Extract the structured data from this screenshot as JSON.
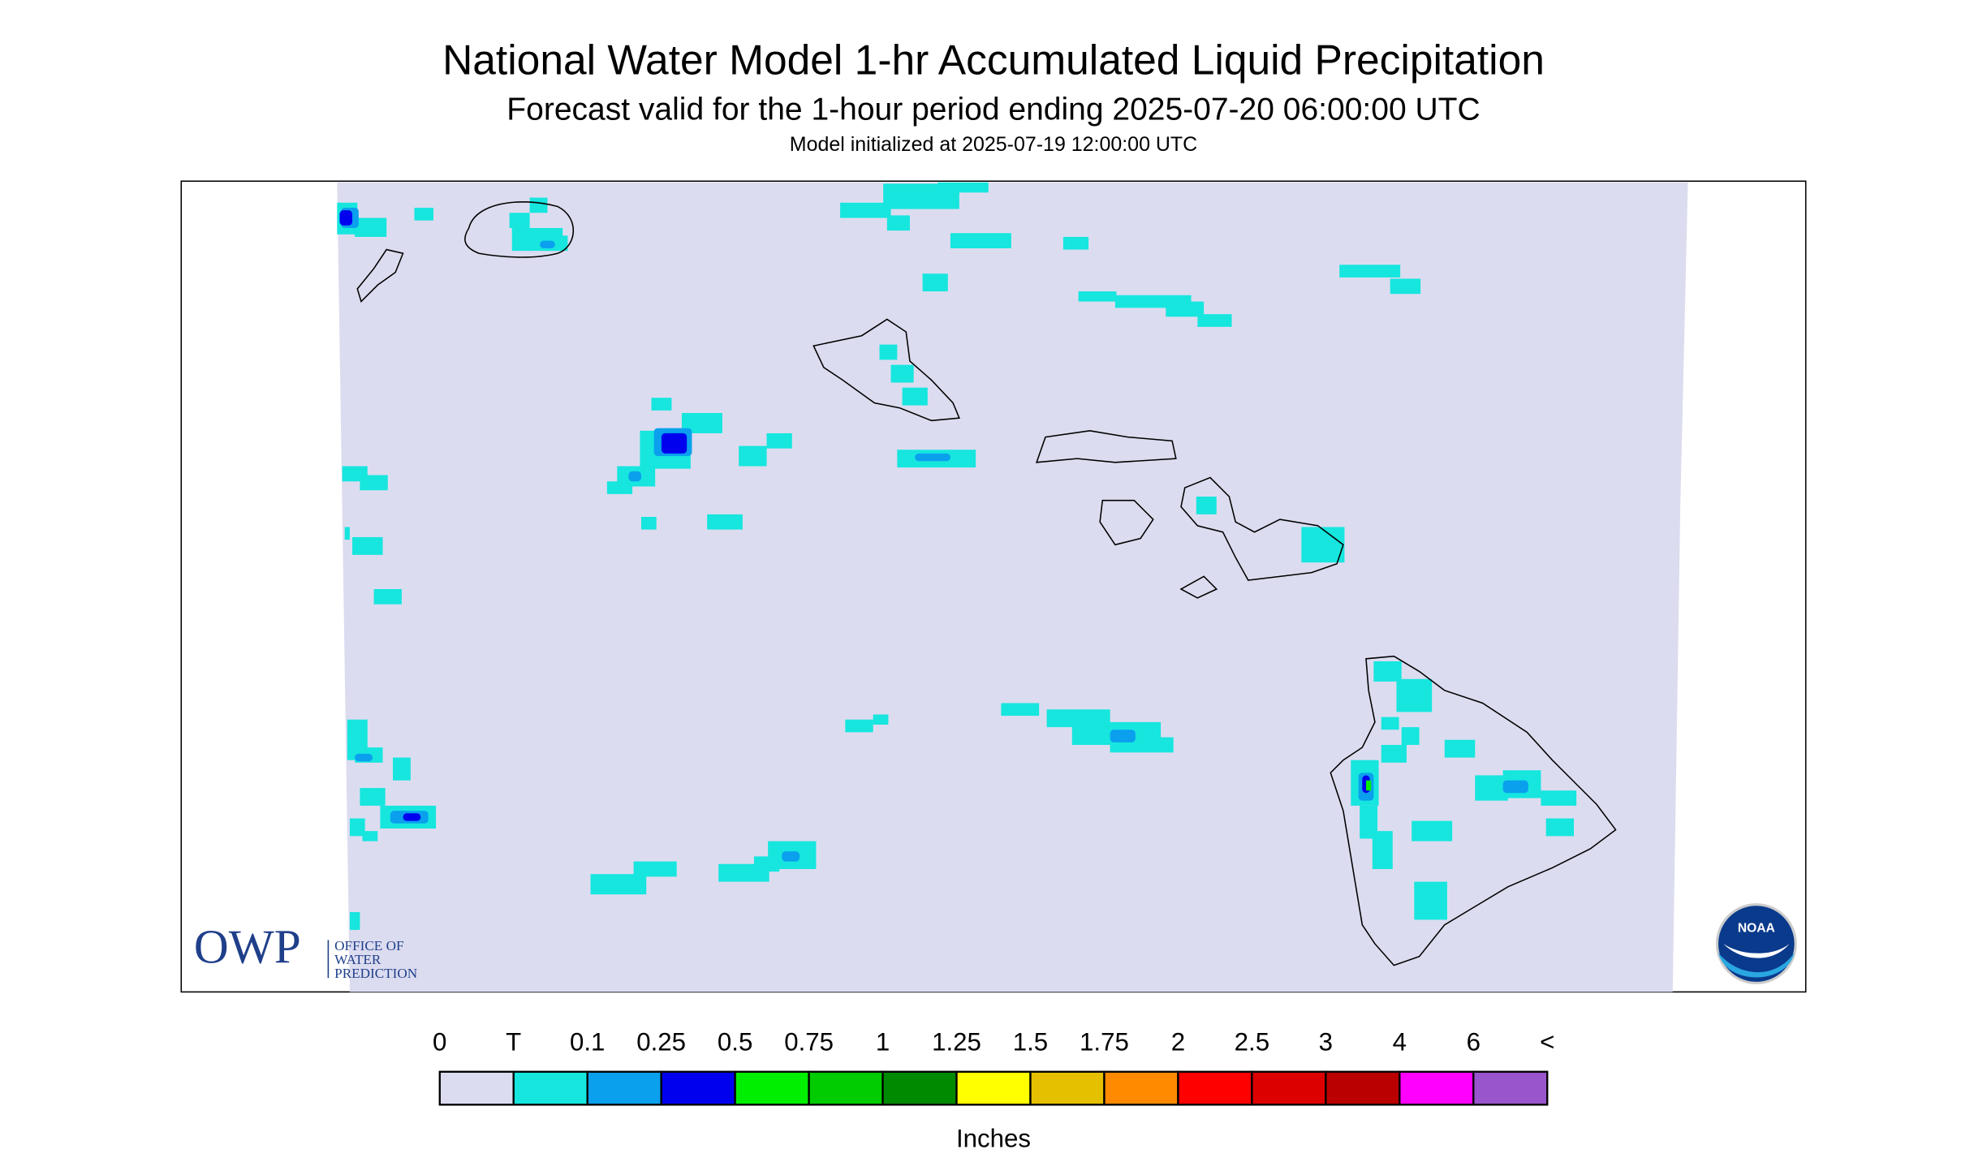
{
  "title": "National Water Model 1-hr Accumulated Liquid Precipitation",
  "subtitle": "Forecast valid for the 1-hour period ending 2025-07-20 06:00:00 UTC",
  "init_note": "Model initialized at 2025-07-19 12:00:00 UTC",
  "legend": {
    "labels": [
      "0",
      "T",
      "0.1",
      "0.25",
      "0.5",
      "0.75",
      "1",
      "1.25",
      "1.5",
      "1.75",
      "2",
      "2.5",
      "3",
      "4",
      "6",
      "<"
    ],
    "colors": [
      "#dcdcf0",
      "#16e6de",
      "#0aa0ee",
      "#0000ee",
      "#00ee00",
      "#00cc00",
      "#008a00",
      "#ffff00",
      "#e5c000",
      "#ff8a00",
      "#ff0000",
      "#dd0000",
      "#bb0000",
      "#ff00ff",
      "#9955cc"
    ],
    "unit_label": "Inches"
  },
  "logos": {
    "owp": "OWP",
    "owp_lines": [
      "OFFICE OF",
      "WATER",
      "PREDICTION"
    ],
    "noaa": "NOAA"
  }
}
